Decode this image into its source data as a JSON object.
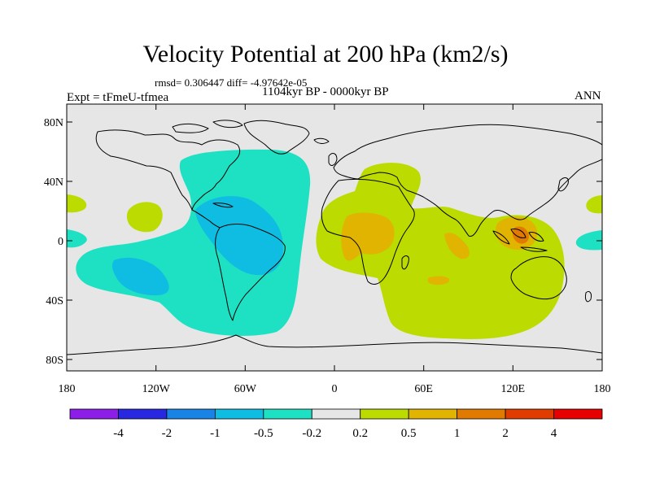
{
  "title": "Velocity Potential at 200 hPa (km2/s)",
  "stats": {
    "rmsd_label": "rmsd= 0.306447",
    "diff_label": "diff= -4.97642e-05"
  },
  "period": "1104kyr BP - 0000kyr BP",
  "experiment": "Expt = tFmeU-tfmea",
  "season": "ANN",
  "axes": {
    "lat_ticks": [
      "80N",
      "40N",
      "0",
      "40S",
      "80S"
    ],
    "lon_ticks": [
      "180",
      "120W",
      "60W",
      "0",
      "60E",
      "120E",
      "180"
    ]
  },
  "colorbar": {
    "labels": [
      "-4",
      "-2",
      "-1",
      "-0.5",
      "-0.2",
      "0.2",
      "0.5",
      "1",
      "2",
      "4"
    ],
    "colors": [
      "#8c1ee8",
      "#2828e0",
      "#1a84e6",
      "#0fbde2",
      "#1ee0c3",
      "#e6e6e6",
      "#bcdb00",
      "#e0b400",
      "#e07a00",
      "#e03c00",
      "#e60000"
    ]
  },
  "colors": {
    "neutral": "#e6e6e6",
    "neg_light": "#1ee0c3",
    "neg_mid": "#0fbde2",
    "pos_light": "#bcdb00",
    "pos_mid": "#e0b400",
    "pos_strong": "#e07a00"
  }
}
